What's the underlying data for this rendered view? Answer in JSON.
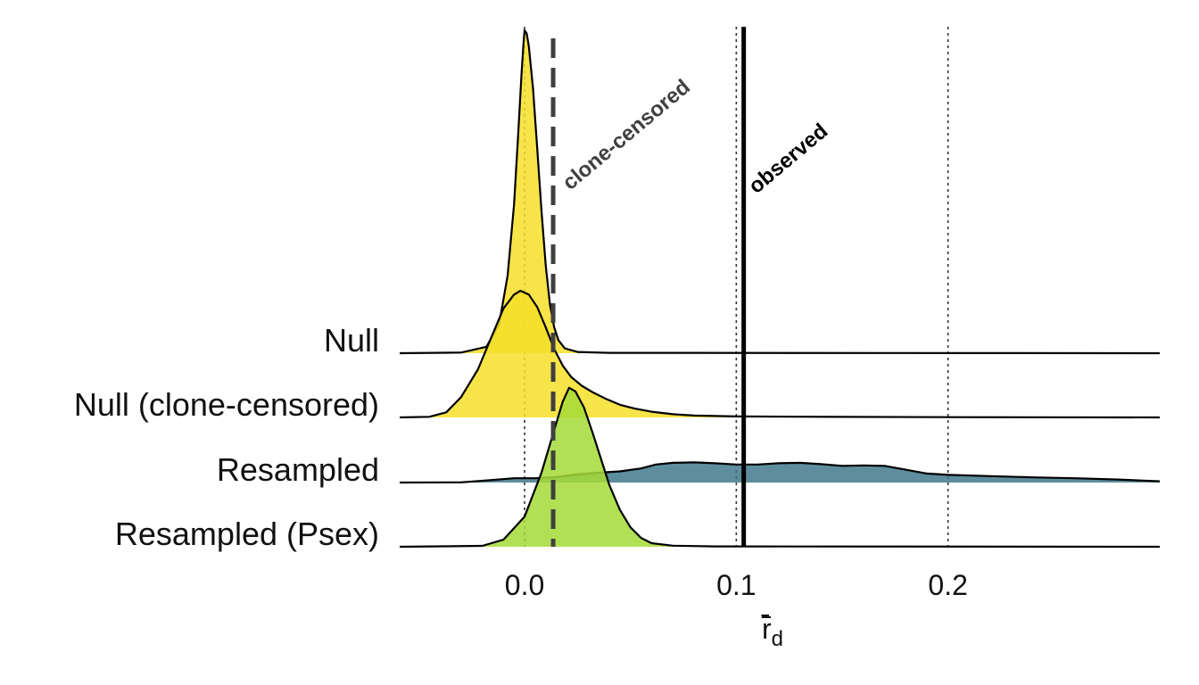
{
  "chart_data": {
    "type": "ridgeline",
    "title": "",
    "xlabel": "r̄",
    "xlabel_subscript": "d",
    "ylabel": "",
    "xlim": [
      -0.059,
      0.3
    ],
    "x_ticks": [
      0.0,
      0.1,
      0.2
    ],
    "x_tick_labels": [
      "0.0",
      "0.1",
      "0.2"
    ],
    "grid": false,
    "legend": "none",
    "series": [
      {
        "name": "Null",
        "color": "#F5DF29",
        "alpha": 0.85,
        "points": [
          [
            -0.059,
            0
          ],
          [
            -0.03,
            0.002
          ],
          [
            -0.018,
            0.02
          ],
          [
            -0.012,
            0.09
          ],
          [
            -0.008,
            0.24
          ],
          [
            -0.005,
            0.46
          ],
          [
            -0.003,
            0.68
          ],
          [
            -0.0015,
            0.86
          ],
          [
            -0.0005,
            0.96
          ],
          [
            0.0,
            1.0
          ],
          [
            0.001,
            0.99
          ],
          [
            0.002,
            0.95
          ],
          [
            0.004,
            0.82
          ],
          [
            0.006,
            0.63
          ],
          [
            0.008,
            0.44
          ],
          [
            0.01,
            0.27
          ],
          [
            0.012,
            0.15
          ],
          [
            0.014,
            0.08
          ],
          [
            0.016,
            0.04
          ],
          [
            0.019,
            0.015
          ],
          [
            0.025,
            0.004
          ],
          [
            0.04,
            0.001
          ],
          [
            0.3,
            0
          ]
        ]
      },
      {
        "name": "Null (clone-censored)",
        "color": "#F5DF29",
        "alpha": 0.85,
        "points": [
          [
            -0.059,
            0
          ],
          [
            -0.045,
            0.005
          ],
          [
            -0.037,
            0.04
          ],
          [
            -0.03,
            0.16
          ],
          [
            -0.022,
            0.38
          ],
          [
            -0.015,
            0.66
          ],
          [
            -0.01,
            0.86
          ],
          [
            -0.005,
            0.97
          ],
          [
            -0.002,
            1.0
          ],
          [
            0.002,
            0.97
          ],
          [
            0.006,
            0.87
          ],
          [
            0.01,
            0.71
          ],
          [
            0.014,
            0.54
          ],
          [
            0.018,
            0.41
          ],
          [
            0.022,
            0.32
          ],
          [
            0.027,
            0.25
          ],
          [
            0.032,
            0.2
          ],
          [
            0.038,
            0.15
          ],
          [
            0.045,
            0.1
          ],
          [
            0.052,
            0.07
          ],
          [
            0.06,
            0.045
          ],
          [
            0.07,
            0.025
          ],
          [
            0.08,
            0.015
          ],
          [
            0.1,
            0.008
          ],
          [
            0.15,
            0.004
          ],
          [
            0.2,
            0.002
          ],
          [
            0.3,
            0
          ]
        ]
      },
      {
        "name": "Resampled",
        "color": "#3B7489",
        "alpha": 0.82,
        "points": [
          [
            -0.059,
            0
          ],
          [
            -0.03,
            0.005
          ],
          [
            -0.015,
            0.06
          ],
          [
            -0.005,
            0.1
          ],
          [
            0.005,
            0.1
          ],
          [
            0.015,
            0.13
          ],
          [
            0.025,
            0.19
          ],
          [
            0.035,
            0.23
          ],
          [
            0.045,
            0.26
          ],
          [
            0.055,
            0.33
          ],
          [
            0.062,
            0.42
          ],
          [
            0.07,
            0.46
          ],
          [
            0.08,
            0.47
          ],
          [
            0.09,
            0.45
          ],
          [
            0.1,
            0.42
          ],
          [
            0.11,
            0.42
          ],
          [
            0.12,
            0.45
          ],
          [
            0.13,
            0.46
          ],
          [
            0.14,
            0.43
          ],
          [
            0.15,
            0.39
          ],
          [
            0.16,
            0.4
          ],
          [
            0.17,
            0.39
          ],
          [
            0.18,
            0.3
          ],
          [
            0.19,
            0.21
          ],
          [
            0.2,
            0.18
          ],
          [
            0.22,
            0.15
          ],
          [
            0.24,
            0.12
          ],
          [
            0.26,
            0.1
          ],
          [
            0.28,
            0.07
          ],
          [
            0.3,
            0.03
          ]
        ]
      },
      {
        "name": "Resampled (Psex)",
        "color": "#A5DB36",
        "alpha": 0.85,
        "points": [
          [
            -0.059,
            0
          ],
          [
            -0.02,
            0.005
          ],
          [
            -0.01,
            0.04
          ],
          [
            0.0,
            0.17
          ],
          [
            0.008,
            0.42
          ],
          [
            0.014,
            0.66
          ],
          [
            0.018,
            0.82
          ],
          [
            0.021,
            0.9
          ],
          [
            0.024,
            0.88
          ],
          [
            0.028,
            0.79
          ],
          [
            0.032,
            0.65
          ],
          [
            0.036,
            0.5
          ],
          [
            0.04,
            0.35
          ],
          [
            0.045,
            0.21
          ],
          [
            0.05,
            0.11
          ],
          [
            0.055,
            0.05
          ],
          [
            0.06,
            0.02
          ],
          [
            0.07,
            0.006
          ],
          [
            0.09,
            0.002
          ],
          [
            0.3,
            0
          ]
        ]
      }
    ],
    "reference_lines": [
      {
        "name": "clone-censored",
        "x": 0.0135,
        "style": "dashed",
        "color": "#404040",
        "label": "clone-censored"
      },
      {
        "name": "observed",
        "x": 0.1035,
        "style": "solid",
        "color": "#000000",
        "label": "observed"
      },
      {
        "name": "dotted-0.0",
        "x": 0.0,
        "style": "dotted",
        "color": "#333333"
      },
      {
        "name": "dotted-0.1",
        "x": 0.1,
        "style": "dotted",
        "color": "#333333"
      },
      {
        "name": "dotted-0.2",
        "x": 0.2,
        "style": "dotted",
        "color": "#333333"
      }
    ]
  }
}
